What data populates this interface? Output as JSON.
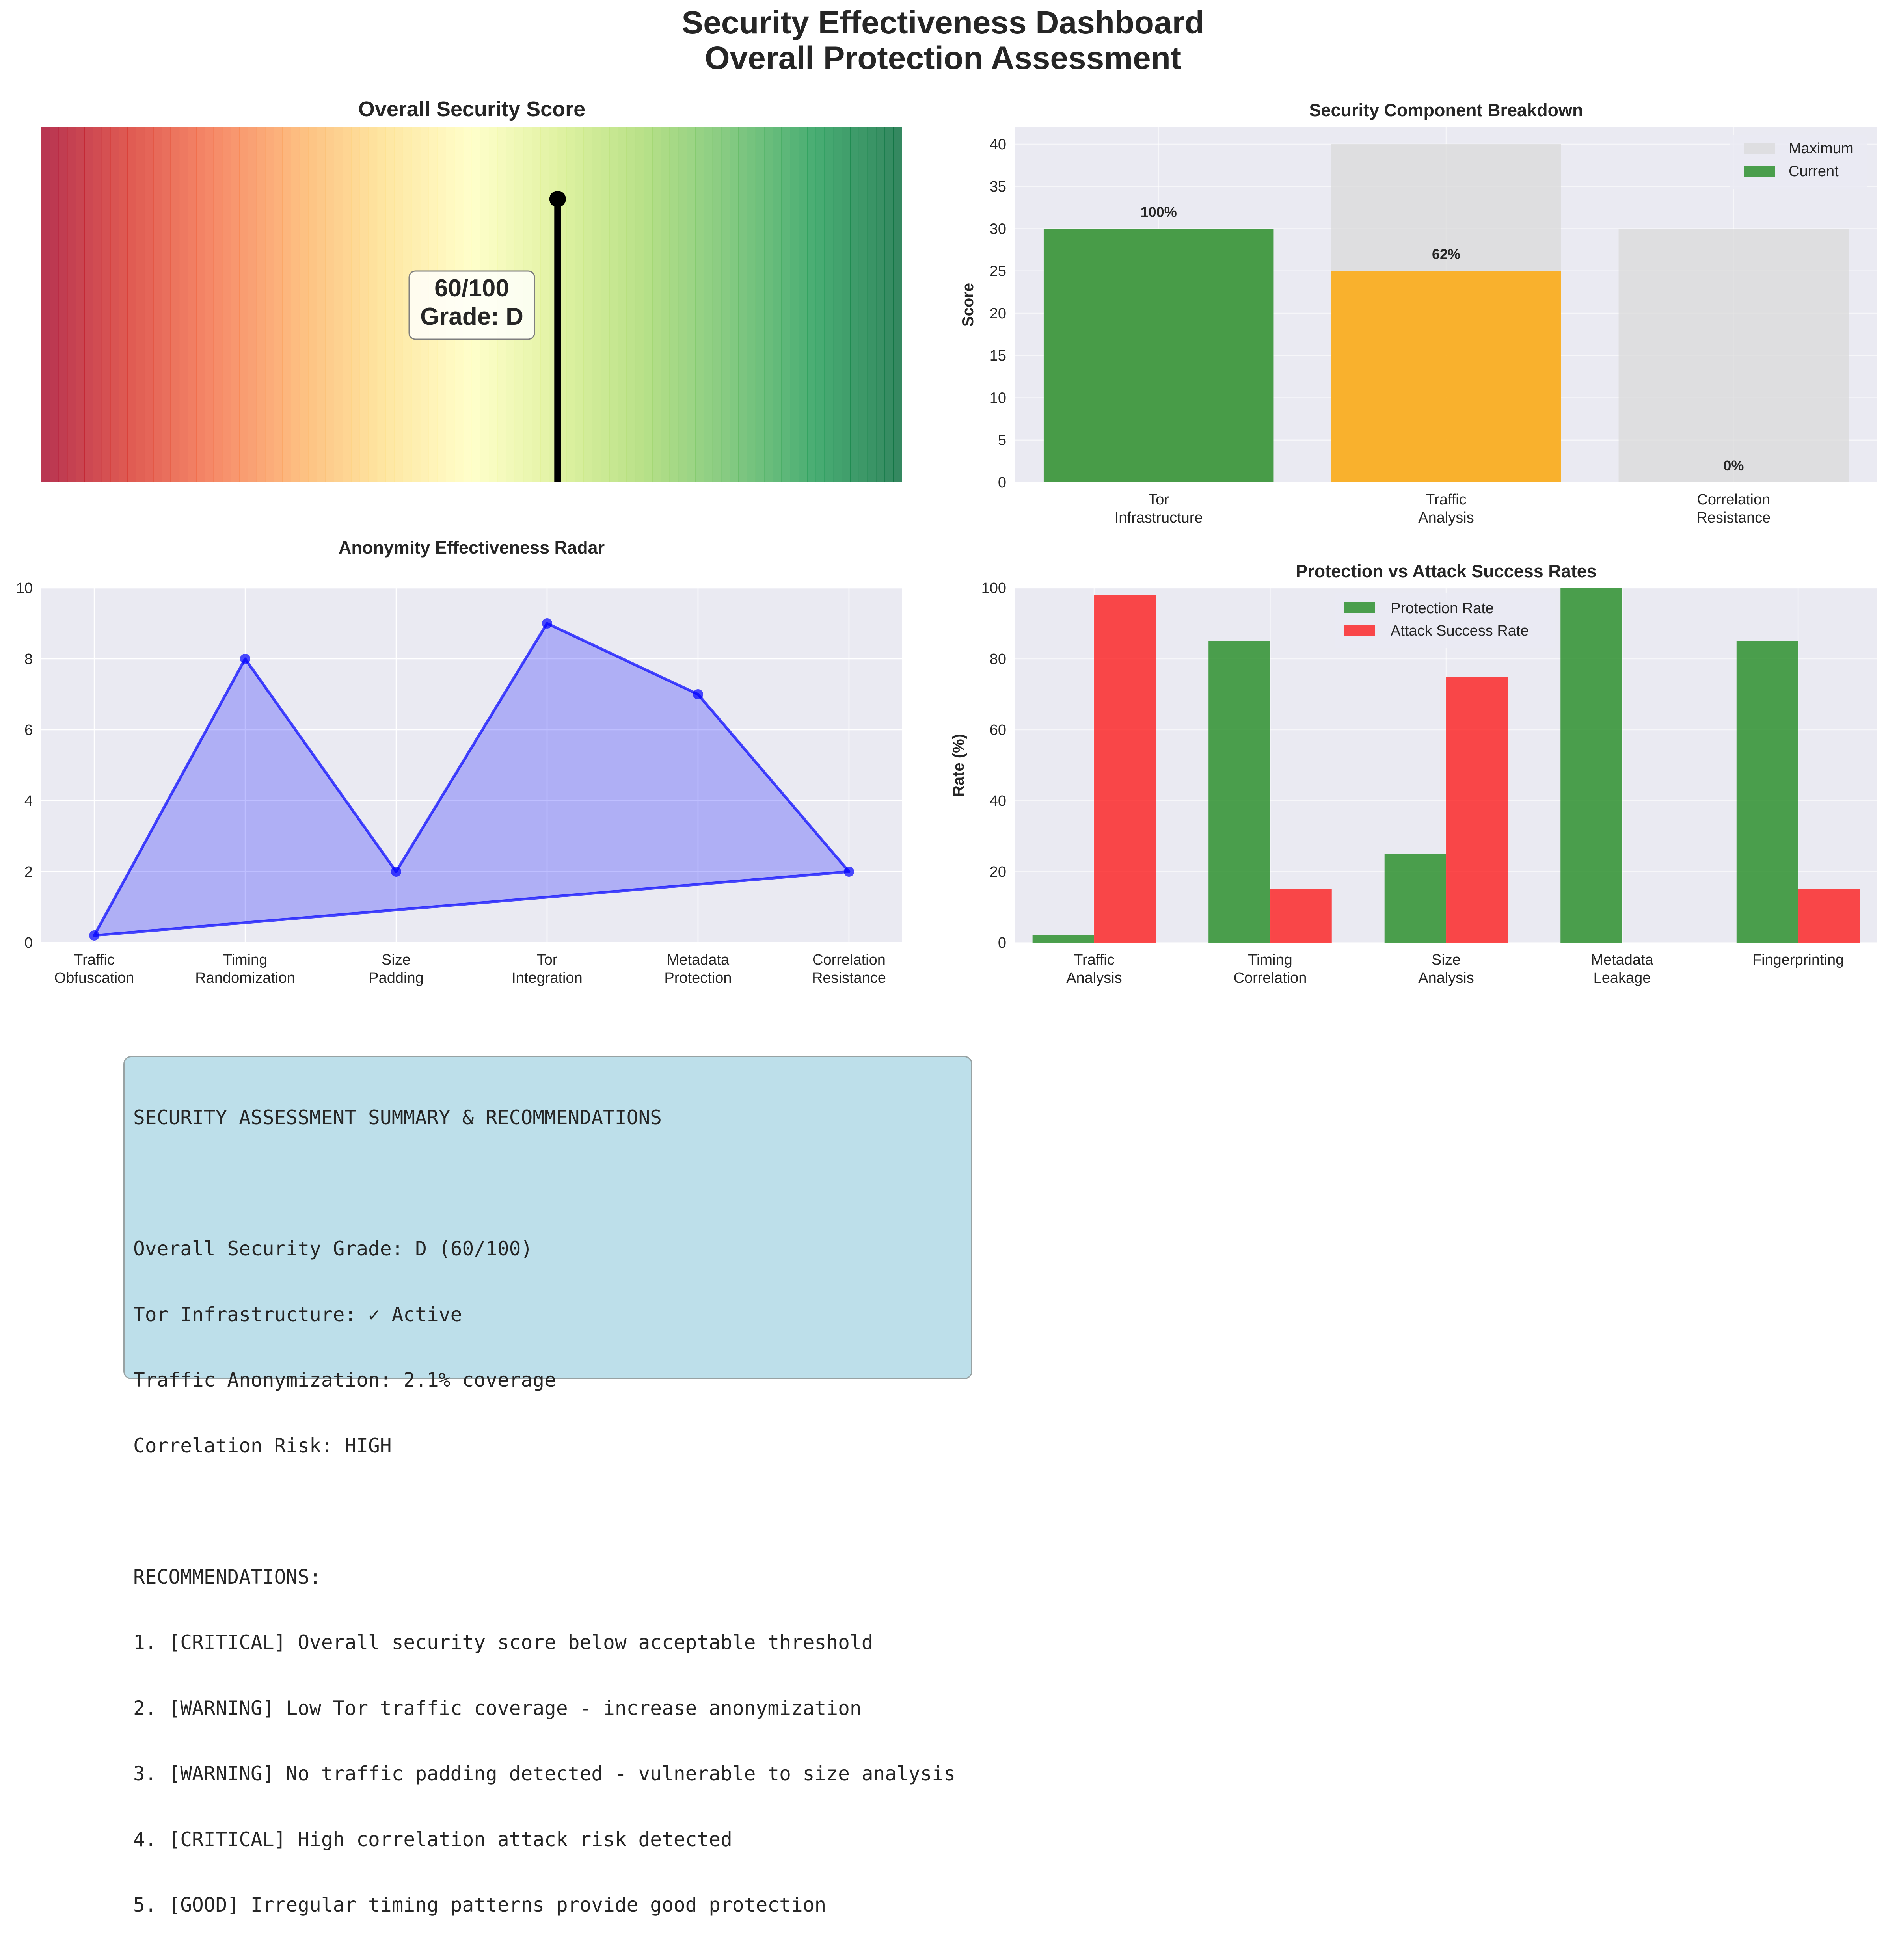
{
  "suptitle": {
    "line1": "Security Effectiveness Dashboard",
    "line2": "Overall Protection Assessment"
  },
  "colors": {
    "axes_bg": "#eaeaf2",
    "grid": "#ffffff",
    "text": "#262626",
    "maximum": "#d9d9d9",
    "current_green": "#228b22",
    "current_orange": "#ffa500",
    "protection": "#228b22",
    "attack": "#ff0000",
    "radar": "#0000ff",
    "summary_bg": "#add8e6"
  },
  "chart_data": [
    {
      "id": "gauge",
      "type": "gauge",
      "title": "Overall Security Score",
      "value": 60,
      "xlim": [
        0,
        100
      ],
      "colormap": "RdYlGn",
      "score_label": "60/100",
      "grade_label": "Grade: D"
    },
    {
      "id": "breakdown",
      "type": "bar",
      "title": "Security Component Breakdown",
      "xlabel": "",
      "ylabel": "Score",
      "ylim": [
        0,
        42
      ],
      "yticks": [
        0,
        5,
        10,
        15,
        20,
        25,
        30,
        35,
        40
      ],
      "categories": [
        "Tor\nInfrastructure",
        "Traffic\nAnalysis",
        "Correlation\nResistance"
      ],
      "series": [
        {
          "name": "Maximum",
          "values": [
            30,
            40,
            30
          ],
          "color": "#d9d9d9"
        },
        {
          "name": "Current",
          "values": [
            30,
            25,
            0
          ],
          "colors": [
            "#228b22",
            "#ffa500",
            "#228b22"
          ]
        }
      ],
      "bar_labels": [
        "100%",
        "62%",
        "0%"
      ],
      "legend": "top-right",
      "grid": true
    },
    {
      "id": "radar",
      "type": "line",
      "title": "Anonymity Effectiveness Radar",
      "xlabel": "",
      "ylabel": "",
      "ylim": [
        0,
        10
      ],
      "yticks": [
        0,
        2,
        4,
        6,
        8,
        10
      ],
      "categories": [
        "Traffic\nObfuscation",
        "Timing\nRandomization",
        "Size\nPadding",
        "Tor\nIntegration",
        "Metadata\nProtection",
        "Correlation\nResistance"
      ],
      "values": [
        0.2,
        8,
        2,
        9,
        7,
        2
      ],
      "closed": true,
      "grid": true
    },
    {
      "id": "rates",
      "type": "bar",
      "title": "Protection vs Attack Success Rates",
      "xlabel": "",
      "ylabel": "Rate (%)",
      "ylim": [
        0,
        100
      ],
      "yticks": [
        0,
        20,
        40,
        60,
        80,
        100
      ],
      "categories": [
        "Traffic\nAnalysis",
        "Timing\nCorrelation",
        "Size\nAnalysis",
        "Metadata\nLeakage",
        "Fingerprinting"
      ],
      "series": [
        {
          "name": "Protection Rate",
          "values": [
            2,
            85,
            25,
            100,
            85
          ],
          "color": "#228b22"
        },
        {
          "name": "Attack Success Rate",
          "values": [
            98,
            15,
            75,
            0,
            15
          ],
          "color": "#ff0000"
        }
      ],
      "legend": "upper-center",
      "grid": true
    }
  ],
  "summary": {
    "lines": [
      "SECURITY ASSESSMENT SUMMARY & RECOMMENDATIONS",
      "",
      "Overall Security Grade: D (60/100)",
      "Tor Infrastructure: ✓ Active",
      "Traffic Anonymization: 2.1% coverage",
      "Correlation Risk: HIGH",
      "",
      "RECOMMENDATIONS:",
      "1. [CRITICAL] Overall security score below acceptable threshold",
      "2. [WARNING] Low Tor traffic coverage - increase anonymization",
      "3. [WARNING] No traffic padding detected - vulnerable to size analysis",
      "4. [CRITICAL] High correlation attack risk detected",
      "5. [GOOD] Irregular timing patterns provide good protection"
    ]
  }
}
